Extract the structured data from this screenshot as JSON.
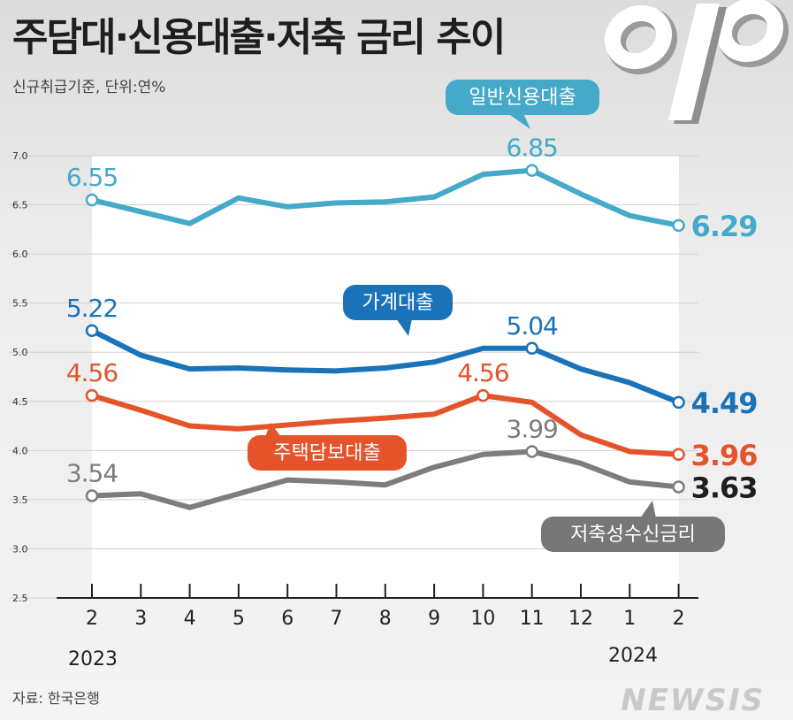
{
  "header": {
    "title": "주담대·신용대출·저축 금리 추이",
    "subtitle": "신규취급기준, 단위:연%"
  },
  "footer": {
    "source": "자료: 한국은행",
    "watermark": "NEWSIS"
  },
  "decoration": {
    "icon": "percent-icon"
  },
  "chart_data": {
    "type": "line",
    "title": "주담대·신용대출·저축 금리 추이",
    "ylabel": "연%",
    "ylim": [
      2.5,
      7.0
    ],
    "yticks": [
      "2.5",
      "3.0",
      "3.5",
      "4.0",
      "4.5",
      "5.0",
      "5.5",
      "6.0",
      "6.5",
      "7.0"
    ],
    "x": [
      "2",
      "3",
      "4",
      "5",
      "6",
      "7",
      "8",
      "9",
      "10",
      "11",
      "12",
      "1",
      "2"
    ],
    "year_labels": [
      "2023",
      "2024"
    ],
    "grid": true,
    "series": [
      {
        "name": "일반신용대출",
        "color": "#45a9c9",
        "values": [
          6.55,
          6.43,
          6.31,
          6.57,
          6.48,
          6.52,
          6.53,
          6.58,
          6.81,
          6.85,
          6.61,
          6.39,
          6.29
        ],
        "labels": [
          {
            "i": 0,
            "text": "6.55"
          },
          {
            "i": 9,
            "text": "6.85"
          },
          {
            "i": 12,
            "text": "6.29"
          }
        ]
      },
      {
        "name": "가계대출",
        "color": "#1a72b9",
        "values": [
          5.22,
          4.97,
          4.83,
          4.84,
          4.82,
          4.81,
          4.84,
          4.9,
          5.04,
          5.04,
          4.83,
          4.69,
          4.49
        ],
        "labels": [
          {
            "i": 0,
            "text": "5.22"
          },
          {
            "i": 9,
            "text": "5.04"
          },
          {
            "i": 12,
            "text": "4.49"
          }
        ]
      },
      {
        "name": "주택담보대출",
        "color": "#e5532a",
        "values": [
          4.56,
          4.41,
          4.25,
          4.22,
          4.26,
          4.3,
          4.33,
          4.37,
          4.56,
          4.49,
          4.16,
          3.99,
          3.96
        ],
        "labels": [
          {
            "i": 0,
            "text": "4.56"
          },
          {
            "i": 8,
            "text": "4.56"
          },
          {
            "i": 12,
            "text": "3.96"
          }
        ]
      },
      {
        "name": "저축성수신금리",
        "color": "#7d7d7d",
        "values": [
          3.54,
          3.56,
          3.42,
          3.56,
          3.7,
          3.68,
          3.65,
          3.83,
          3.96,
          3.99,
          3.87,
          3.68,
          3.63
        ],
        "labels": [
          {
            "i": 0,
            "text": "3.54"
          },
          {
            "i": 9,
            "text": "3.99"
          },
          {
            "i": 12,
            "text": "3.63"
          }
        ]
      }
    ]
  }
}
